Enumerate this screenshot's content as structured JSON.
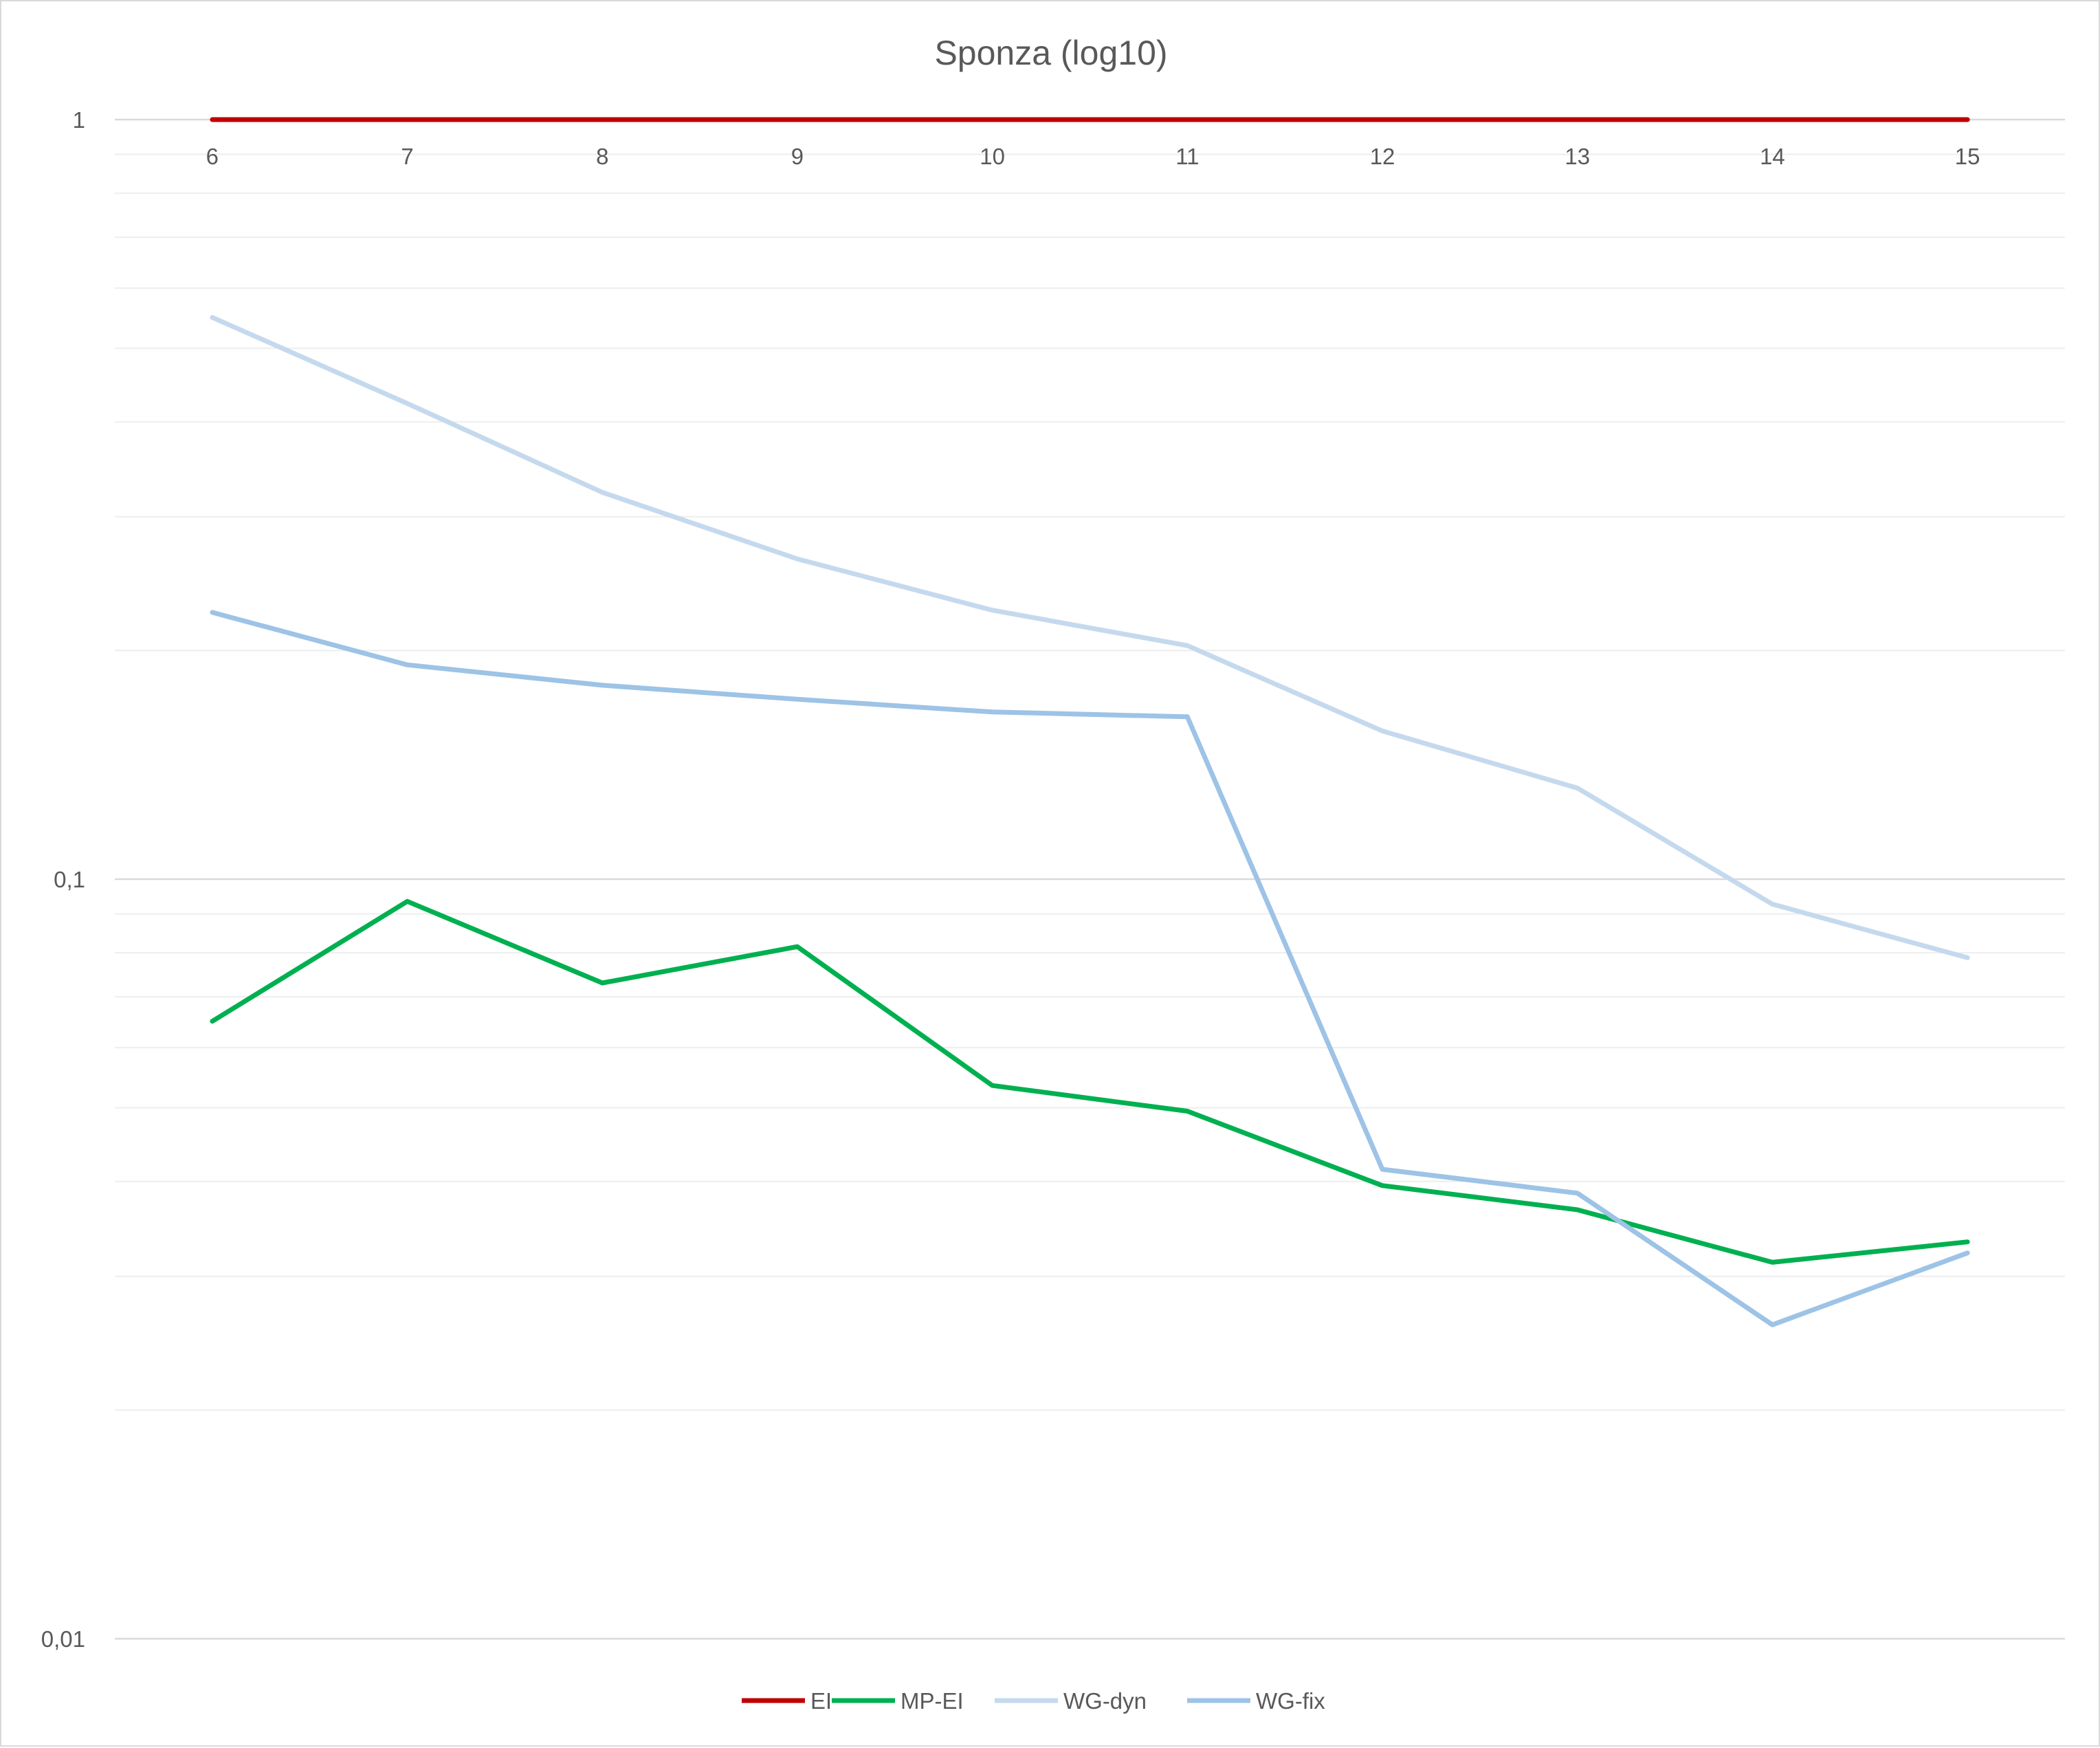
{
  "chart_data": {
    "type": "line",
    "title": "Sponza (log10)",
    "xlabel": "",
    "ylabel": "",
    "y_scale": "log10",
    "ylim": [
      0.01,
      1
    ],
    "y_ticks": [
      {
        "value": 1,
        "label": "1"
      },
      {
        "value": 0.1,
        "label": "0,1"
      },
      {
        "value": 0.01,
        "label": "0,01"
      }
    ],
    "grid": true,
    "legend_position": "bottom",
    "categories": [
      "6",
      "7",
      "8",
      "9",
      "10",
      "11",
      "12",
      "13",
      "14",
      "15"
    ],
    "series": [
      {
        "name": "EI",
        "color": "#c00000",
        "values": [
          1,
          1,
          1,
          1,
          1,
          1,
          1,
          1,
          1,
          1
        ]
      },
      {
        "name": "MP-EI",
        "color": "#00b050",
        "values": [
          0.065,
          0.0935,
          0.073,
          0.0815,
          0.0535,
          0.0495,
          0.0395,
          0.0367,
          0.0313,
          0.0333
        ]
      },
      {
        "name": "WG-dyn",
        "color": "#c5d9ee",
        "values": [
          0.549,
          0.423,
          0.323,
          0.264,
          0.226,
          0.203,
          0.1567,
          0.1318,
          0.0927,
          0.0788
        ]
      },
      {
        "name": "WG-fix",
        "color": "#9dc3e6",
        "values": [
          0.2245,
          0.1915,
          0.18,
          0.1725,
          0.166,
          0.1636,
          0.0415,
          0.0386,
          0.0259,
          0.0322
        ]
      }
    ]
  }
}
